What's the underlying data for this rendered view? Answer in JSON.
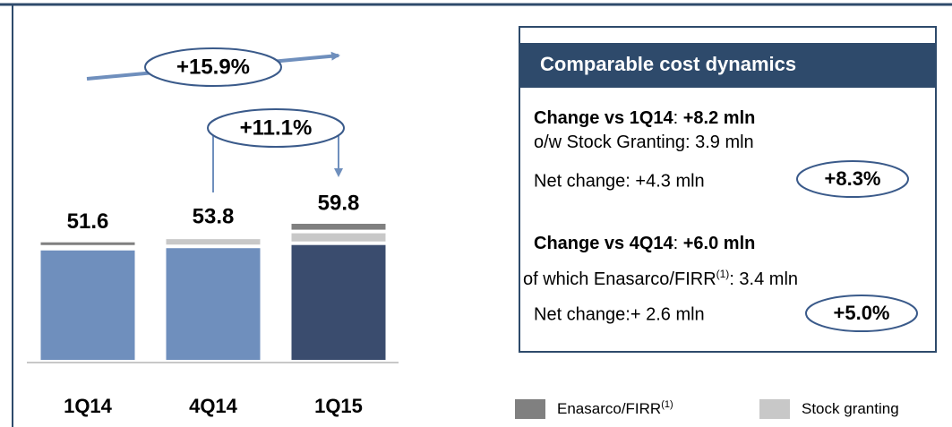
{
  "chart_data": {
    "type": "bar",
    "stacked": true,
    "categories": [
      "1Q14",
      "4Q14",
      "1Q15"
    ],
    "series": [
      {
        "colors": [
          "#6f8fbd",
          "#6f8fbd",
          "#3a4c6e"
        ],
        "values": [
          49.6,
          50.6,
          52.0
        ]
      },
      {
        "name": "Stock granting",
        "color": "#c8c8c8",
        "values": [
          0,
          3.2,
          4.4
        ]
      },
      {
        "name": "Enasarco/FIRR",
        "name_note": "(1)",
        "color": "#808080",
        "values": [
          2.0,
          0,
          3.4
        ]
      }
    ],
    "totals": [
      51.6,
      53.8,
      59.8
    ],
    "annotations": [
      "+15.9%",
      "+11.1%"
    ],
    "legend": "bottom-right"
  },
  "panel": {
    "title": "Comparable cost dynamics",
    "blocks": [
      {
        "head": [
          "Change vs 1Q14",
          ": ",
          "+8.2 mln"
        ],
        "detail": [
          "o/w Stock Granting: 3.9 mln"
        ],
        "net": "Net change: +4.3 mln",
        "badge": "+8.3%"
      },
      {
        "head": [
          "Change vs 4Q14",
          ": ",
          "+6.0 mln"
        ],
        "detail": [
          "of which Enasarco/FIRR",
          "(1)",
          ": 3.4 mln"
        ],
        "net": "Net change:+ 2.6 mln",
        "badge": "+5.0%"
      }
    ]
  }
}
